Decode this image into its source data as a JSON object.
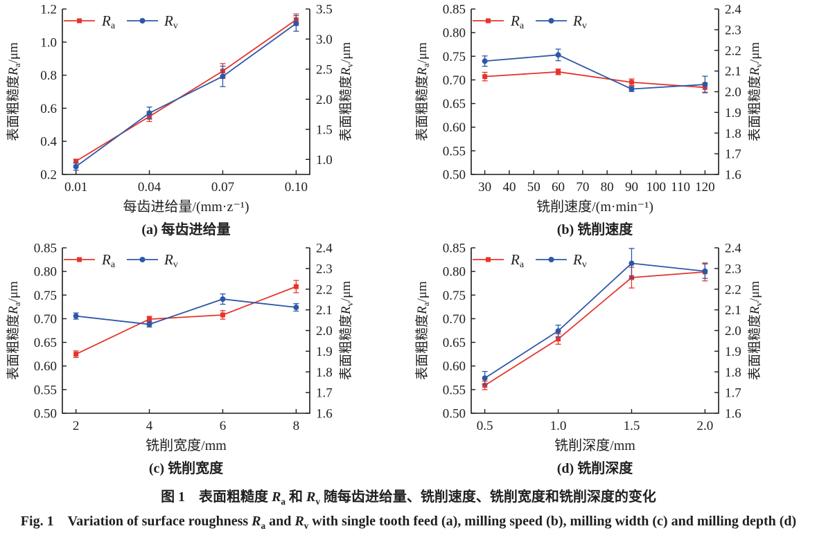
{
  "figure": {
    "caption_cn": {
      "part1": "图 1　表面粗糙度 ",
      "sym1": "R",
      "sub1": "a",
      "part2": " 和 ",
      "sym2": "R",
      "sub2": "v",
      "part3": " 随每齿进给量、铣削速度、铣削宽度和铣削深度的变化"
    },
    "caption_en": {
      "part1": "Fig. 1　Variation of surface roughness ",
      "sym1": "R",
      "sub1": "a",
      "part2": " and ",
      "sym2": "R",
      "sub2": "v",
      "part3": " with single tooth feed (a), milling speed (b), milling width (c) and milling depth (d)"
    },
    "colors": {
      "ra": "#e5342b",
      "rv": "#2d57a7",
      "axis": "#1a1a1a",
      "text": "#1f1f1f"
    }
  },
  "chart_data": [
    {
      "id": "a",
      "type": "line",
      "caption": "(a) 每齿进给量",
      "xlabel": "每齿进给量/(mm·z⁻¹)",
      "x_ticks": {
        "values": [
          0.01,
          0.04,
          0.07,
          0.1
        ],
        "labels": [
          "0.01",
          "0.04",
          "0.07",
          "0.10"
        ]
      },
      "left_axis": {
        "label": {
          "prefix": "表面粗糙度",
          "sym": "R",
          "sub": "a",
          "suffix": "/μm"
        },
        "min": 0.2,
        "max": 1.2,
        "tick_values": [
          0.2,
          0.4,
          0.6,
          0.8,
          1.0,
          1.2
        ],
        "tick_labels": [
          "0.2",
          "0.4",
          "0.6",
          "0.8",
          "1.0",
          "1.2"
        ]
      },
      "right_axis": {
        "label": {
          "prefix": "表面粗糙度",
          "sym": "R",
          "sub": "v",
          "suffix": "/μm"
        },
        "min": 0.75,
        "max": 3.5,
        "tick_values": [
          1.0,
          1.5,
          2.0,
          2.5,
          3.0,
          3.5
        ],
        "tick_labels": [
          "1.0",
          "1.5",
          "2.0",
          "2.5",
          "3.0",
          "3.5"
        ]
      },
      "legend": [
        {
          "sym": "R",
          "sub": "a"
        },
        {
          "sym": "R",
          "sub": "v"
        }
      ],
      "series": [
        {
          "name": "Ra",
          "axis": "left",
          "color_key": "ra",
          "marker": "square",
          "x": [
            0.01,
            0.04,
            0.07,
            0.1
          ],
          "y": [
            0.28,
            0.55,
            0.825,
            1.135
          ],
          "err": [
            0.012,
            0.03,
            0.045,
            0.035
          ]
        },
        {
          "name": "Rv",
          "axis": "right",
          "color_key": "rv",
          "marker": "circle",
          "x": [
            0.01,
            0.04,
            0.07,
            0.1
          ],
          "y": [
            0.88,
            1.77,
            2.38,
            3.26
          ],
          "err": [
            0.06,
            0.1,
            0.17,
            0.13
          ]
        }
      ]
    },
    {
      "id": "b",
      "type": "line",
      "caption": "(b) 铣削速度",
      "xlabel": "铣削速度/(m·min⁻¹)",
      "x_ticks": {
        "values": [
          30,
          40,
          50,
          60,
          70,
          80,
          90,
          100,
          110,
          120
        ],
        "labels": [
          "30",
          "40",
          "50",
          "60",
          "70",
          "80",
          "90",
          "100",
          "110",
          "120"
        ]
      },
      "left_axis": {
        "label": {
          "prefix": "表面粗糙度",
          "sym": "R",
          "sub": "a",
          "suffix": "/μm"
        },
        "min": 0.5,
        "max": 0.85,
        "tick_values": [
          0.5,
          0.55,
          0.6,
          0.65,
          0.7,
          0.75,
          0.8,
          0.85
        ],
        "tick_labels": [
          "0.50",
          "0.55",
          "0.60",
          "0.65",
          "0.70",
          "0.75",
          "0.80",
          "0.85"
        ]
      },
      "right_axis": {
        "label": {
          "prefix": "表面粗糙度",
          "sym": "R",
          "sub": "v",
          "suffix": "/μm"
        },
        "min": 1.6,
        "max": 2.4,
        "tick_values": [
          1.6,
          1.7,
          1.8,
          1.9,
          2.0,
          2.1,
          2.2,
          2.3,
          2.4
        ],
        "tick_labels": [
          "1.6",
          "1.7",
          "1.8",
          "1.9",
          "2.0",
          "2.1",
          "2.2",
          "2.3",
          "2.4"
        ]
      },
      "legend": [
        {
          "sym": "R",
          "sub": "a"
        },
        {
          "sym": "R",
          "sub": "v"
        }
      ],
      "series": [
        {
          "name": "Ra",
          "axis": "left",
          "color_key": "ra",
          "marker": "square",
          "x": [
            30,
            60,
            90,
            120
          ],
          "y": [
            0.707,
            0.717,
            0.695,
            0.684
          ],
          "err": [
            0.009,
            0.006,
            0.007,
            0.01
          ]
        },
        {
          "name": "Rv",
          "axis": "right",
          "color_key": "rv",
          "marker": "circle",
          "x": [
            30,
            60,
            90,
            120
          ],
          "y": [
            2.148,
            2.178,
            2.013,
            2.035
          ],
          "err": [
            0.025,
            0.028,
            0.012,
            0.04
          ]
        }
      ]
    },
    {
      "id": "c",
      "type": "line",
      "caption": "(c) 铣削宽度",
      "xlabel": "铣削宽度/mm",
      "x_ticks": {
        "values": [
          2,
          4,
          6,
          8
        ],
        "labels": [
          "2",
          "4",
          "6",
          "8"
        ]
      },
      "left_axis": {
        "label": {
          "prefix": "表面粗糙度",
          "sym": "R",
          "sub": "a",
          "suffix": "/μm"
        },
        "min": 0.5,
        "max": 0.85,
        "tick_values": [
          0.5,
          0.55,
          0.6,
          0.65,
          0.7,
          0.75,
          0.8,
          0.85
        ],
        "tick_labels": [
          "0.50",
          "0.55",
          "0.60",
          "0.65",
          "0.70",
          "0.75",
          "0.80",
          "0.85"
        ]
      },
      "right_axis": {
        "label": {
          "prefix": "表面粗糙度",
          "sym": "R",
          "sub": "v",
          "suffix": "/μm"
        },
        "min": 1.6,
        "max": 2.4,
        "tick_values": [
          1.6,
          1.7,
          1.8,
          1.9,
          2.0,
          2.1,
          2.2,
          2.3,
          2.4
        ],
        "tick_labels": [
          "1.6",
          "1.7",
          "1.8",
          "1.9",
          "2.0",
          "2.1",
          "2.2",
          "2.3",
          "2.4"
        ]
      },
      "legend": [
        {
          "sym": "R",
          "sub": "a"
        },
        {
          "sym": "R",
          "sub": "v"
        }
      ],
      "series": [
        {
          "name": "Ra",
          "axis": "left",
          "color_key": "ra",
          "marker": "square",
          "x": [
            2,
            4,
            6,
            8
          ],
          "y": [
            0.625,
            0.699,
            0.708,
            0.768
          ],
          "err": [
            0.007,
            0.006,
            0.009,
            0.013
          ]
        },
        {
          "name": "Rv",
          "axis": "right",
          "color_key": "rv",
          "marker": "circle",
          "x": [
            2,
            4,
            6,
            8
          ],
          "y": [
            2.07,
            2.03,
            2.152,
            2.112
          ],
          "err": [
            0.015,
            0.013,
            0.025,
            0.018
          ]
        }
      ]
    },
    {
      "id": "d",
      "type": "line",
      "caption": "(d) 铣削深度",
      "xlabel": "铣削深度/mm",
      "x_ticks": {
        "values": [
          0.5,
          1.0,
          1.5,
          2.0
        ],
        "labels": [
          "0.5",
          "1.0",
          "1.5",
          "2.0"
        ]
      },
      "left_axis": {
        "label": {
          "prefix": "表面粗糙度",
          "sym": "R",
          "sub": "a",
          "suffix": "/μm"
        },
        "min": 0.5,
        "max": 0.85,
        "tick_values": [
          0.5,
          0.55,
          0.6,
          0.65,
          0.7,
          0.75,
          0.8,
          0.85
        ],
        "tick_labels": [
          "0.50",
          "0.55",
          "0.60",
          "0.65",
          "0.70",
          "0.75",
          "0.80",
          "0.85"
        ]
      },
      "right_axis": {
        "label": {
          "prefix": "表面粗糙度",
          "sym": "R",
          "sub": "v",
          "suffix": "/μm"
        },
        "min": 1.6,
        "max": 2.4,
        "tick_values": [
          1.6,
          1.7,
          1.8,
          1.9,
          2.0,
          2.1,
          2.2,
          2.3,
          2.4
        ],
        "tick_labels": [
          "1.6",
          "1.7",
          "1.8",
          "1.9",
          "2.0",
          "2.1",
          "2.2",
          "2.3",
          "2.4"
        ]
      },
      "legend": [
        {
          "sym": "R",
          "sub": "a"
        },
        {
          "sym": "R",
          "sub": "v"
        }
      ],
      "series": [
        {
          "name": "Ra",
          "axis": "left",
          "color_key": "ra",
          "marker": "square",
          "x": [
            0.5,
            1.0,
            1.5,
            2.0
          ],
          "y": [
            0.559,
            0.657,
            0.787,
            0.799
          ],
          "err": [
            0.009,
            0.011,
            0.022,
            0.019
          ]
        },
        {
          "name": "Rv",
          "axis": "right",
          "color_key": "rv",
          "marker": "circle",
          "x": [
            0.5,
            1.0,
            1.5,
            2.0
          ],
          "y": [
            1.77,
            1.998,
            2.325,
            2.287
          ],
          "err": [
            0.032,
            0.028,
            0.072,
            0.035
          ]
        }
      ]
    }
  ]
}
